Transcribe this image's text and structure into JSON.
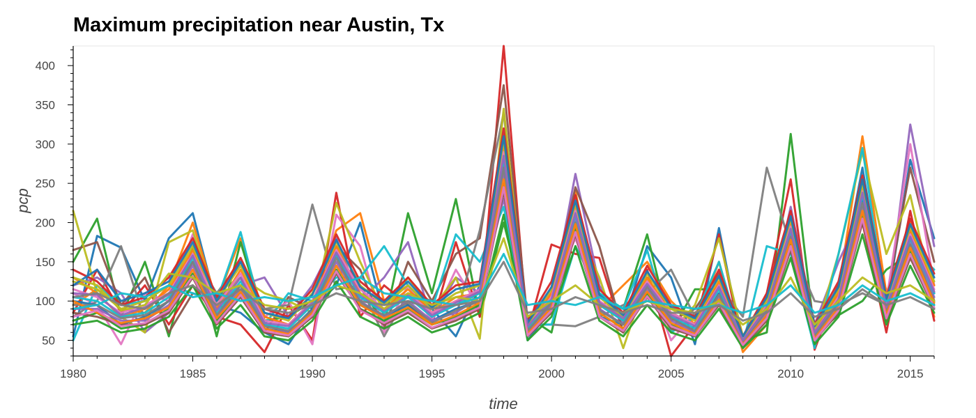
{
  "chart_data": {
    "type": "line",
    "title": "Maximum precipitation near Austin, Tx",
    "xlabel": "time",
    "ylabel": "pcp",
    "xlim": [
      1980,
      2016
    ],
    "ylim": [
      30,
      425
    ],
    "x_ticks": [
      "1980",
      "1985",
      "1990",
      "1995",
      "2000",
      "2005",
      "2010",
      "2015"
    ],
    "y_ticks": [
      "50",
      "100",
      "150",
      "200",
      "250",
      "300",
      "350",
      "400"
    ],
    "grid": false,
    "legend": "none",
    "x": [
      1980,
      1981,
      1982,
      1983,
      1984,
      1985,
      1986,
      1987,
      1988,
      1989,
      1990,
      1991,
      1992,
      1993,
      1994,
      1995,
      1996,
      1997,
      1998,
      1999,
      2000,
      2001,
      2002,
      2003,
      2004,
      2005,
      2006,
      2007,
      2008,
      2009,
      2010,
      2011,
      2012,
      2013,
      2014,
      2015,
      2016
    ],
    "series": [
      {
        "color": "#1f77b4",
        "values": [
          55,
          183,
          168,
          100,
          180,
          212,
          95,
          85,
          60,
          45,
          90,
          120,
          200,
          80,
          100,
          90,
          55,
          120,
          240,
          50,
          90,
          200,
          80,
          70,
          170,
          130,
          45,
          193,
          40,
          100,
          205,
          60,
          110,
          270,
          90,
          280,
          180
        ]
      },
      {
        "color": "#ff7f0e",
        "values": [
          95,
          115,
          90,
          85,
          120,
          200,
          100,
          180,
          80,
          70,
          95,
          190,
          212,
          100,
          120,
          85,
          100,
          110,
          310,
          60,
          95,
          240,
          90,
          120,
          150,
          100,
          70,
          150,
          35,
          70,
          190,
          45,
          115,
          310,
          110,
          200,
          80
        ]
      },
      {
        "color": "#2ca02c",
        "values": [
          150,
          205,
          80,
          150,
          55,
          170,
          55,
          175,
          75,
          80,
          100,
          160,
          120,
          70,
          212,
          110,
          230,
          80,
          200,
          80,
          60,
          190,
          110,
          90,
          185,
          60,
          115,
          115,
          50,
          60,
          313,
          58,
          82,
          100,
          140,
          160,
          100
        ]
      },
      {
        "color": "#d62728",
        "values": [
          85,
          140,
          85,
          120,
          70,
          120,
          80,
          70,
          35,
          95,
          50,
          238,
          80,
          120,
          95,
          70,
          175,
          80,
          425,
          60,
          172,
          160,
          155,
          60,
          140,
          30,
          70,
          185,
          40,
          110,
          255,
          38,
          120,
          200,
          60,
          215,
          75
        ]
      },
      {
        "color": "#9467bd",
        "values": [
          120,
          130,
          110,
          60,
          85,
          150,
          90,
          120,
          130,
          80,
          120,
          180,
          100,
          130,
          175,
          75,
          130,
          110,
          230,
          80,
          100,
          262,
          120,
          70,
          120,
          95,
          80,
          100,
          45,
          80,
          220,
          70,
          150,
          215,
          80,
          325,
          170
        ]
      },
      {
        "color": "#8c564b",
        "values": [
          165,
          175,
          95,
          130,
          60,
          110,
          100,
          130,
          60,
          105,
          90,
          170,
          140,
          65,
          150,
          100,
          160,
          180,
          375,
          75,
          110,
          245,
          170,
          60,
          130,
          75,
          90,
          135,
          45,
          80,
          200,
          60,
          120,
          230,
          100,
          270,
          150
        ]
      },
      {
        "color": "#e377c2",
        "values": [
          110,
          95,
          45,
          110,
          100,
          185,
          75,
          110,
          80,
          100,
          45,
          210,
          170,
          60,
          120,
          75,
          140,
          90,
          265,
          70,
          110,
          180,
          95,
          75,
          130,
          50,
          85,
          120,
          40,
          95,
          170,
          55,
          110,
          255,
          100,
          300,
          120
        ]
      },
      {
        "color": "#7f7f7f",
        "values": [
          80,
          100,
          170,
          75,
          100,
          160,
          110,
          150,
          90,
          95,
          223,
          115,
          120,
          55,
          110,
          100,
          80,
          190,
          340,
          70,
          70,
          68,
          80,
          95,
          110,
          140,
          80,
          120,
          80,
          270,
          170,
          100,
          95,
          110,
          95,
          190,
          110
        ]
      },
      {
        "color": "#bcbd22",
        "values": [
          215,
          110,
          80,
          60,
          175,
          190,
          95,
          130,
          110,
          100,
          85,
          225,
          150,
          85,
          130,
          90,
          130,
          52,
          345,
          60,
          90,
          200,
          130,
          40,
          130,
          60,
          95,
          180,
          55,
          105,
          200,
          55,
          160,
          290,
          160,
          235,
          100
        ]
      },
      {
        "color": "#17becf",
        "values": [
          50,
          120,
          95,
          100,
          120,
          110,
          100,
          188,
          70,
          110,
          100,
          130,
          130,
          170,
          120,
          90,
          185,
          150,
          220,
          70,
          70,
          170,
          110,
          90,
          165,
          60,
          80,
          150,
          45,
          170,
          160,
          40,
          160,
          295,
          90,
          170,
          140
        ]
      },
      {
        "color": "#1f77b4",
        "values": [
          100,
          95,
          70,
          80,
          100,
          150,
          80,
          120,
          65,
          60,
          90,
          160,
          95,
          80,
          95,
          75,
          90,
          100,
          280,
          60,
          100,
          210,
          90,
          70,
          120,
          80,
          60,
          110,
          45,
          90,
          190,
          55,
          100,
          230,
          85,
          180,
          110
        ]
      },
      {
        "color": "#ff7f0e",
        "values": [
          130,
          110,
          80,
          90,
          115,
          165,
          90,
          140,
          80,
          70,
          100,
          170,
          110,
          90,
          115,
          85,
          105,
          110,
          300,
          65,
          110,
          220,
          100,
          75,
          130,
          85,
          70,
          125,
          50,
          100,
          200,
          60,
          110,
          245,
          95,
          190,
          120
        ]
      },
      {
        "color": "#2ca02c",
        "values": [
          75,
          85,
          65,
          70,
          90,
          135,
          75,
          110,
          60,
          55,
          80,
          140,
          90,
          75,
          90,
          70,
          80,
          95,
          250,
          55,
          90,
          195,
          85,
          65,
          110,
          70,
          55,
          100,
          45,
          80,
          175,
          50,
          90,
          210,
          80,
          165,
          95
        ]
      },
      {
        "color": "#d62728",
        "values": [
          140,
          125,
          95,
          105,
          130,
          180,
          105,
          155,
          90,
          80,
          115,
          185,
          125,
          100,
          130,
          95,
          120,
          125,
          320,
          75,
          125,
          235,
          115,
          85,
          145,
          95,
          80,
          140,
          55,
          110,
          215,
          70,
          125,
          260,
          105,
          205,
          135
        ]
      },
      {
        "color": "#9467bd",
        "values": [
          90,
          90,
          75,
          75,
          95,
          145,
          80,
          115,
          70,
          60,
          85,
          150,
          100,
          80,
          100,
          75,
          85,
          105,
          265,
          60,
          95,
          205,
          90,
          70,
          115,
          75,
          60,
          105,
          45,
          85,
          185,
          55,
          95,
          220,
          85,
          175,
          105
        ]
      },
      {
        "color": "#e377c2",
        "values": [
          115,
          105,
          85,
          95,
          110,
          160,
          95,
          135,
          75,
          70,
          100,
          165,
          115,
          90,
          110,
          85,
          100,
          115,
          290,
          70,
          105,
          215,
          100,
          80,
          125,
          85,
          70,
          120,
          50,
          95,
          195,
          60,
          105,
          240,
          95,
          185,
          115
        ]
      },
      {
        "color": "#bcbd22",
        "values": [
          125,
          115,
          90,
          100,
          120,
          170,
          100,
          145,
          85,
          75,
          110,
          175,
          120,
          95,
          120,
          90,
          110,
          120,
          305,
          70,
          115,
          225,
          105,
          80,
          135,
          90,
          75,
          130,
          55,
          100,
          205,
          65,
          115,
          250,
          100,
          195,
          125
        ]
      },
      {
        "color": "#17becf",
        "values": [
          105,
          100,
          80,
          85,
          105,
          155,
          85,
          125,
          70,
          65,
          95,
          160,
          105,
          85,
          105,
          80,
          95,
          110,
          275,
          65,
          100,
          210,
          95,
          75,
          120,
          80,
          65,
          115,
          50,
          90,
          190,
          58,
          100,
          235,
          90,
          180,
          110
        ]
      },
      {
        "color": "#8c564b",
        "values": [
          85,
          80,
          70,
          70,
          85,
          130,
          70,
          105,
          60,
          55,
          80,
          135,
          90,
          70,
          85,
          65,
          75,
          90,
          240,
          55,
          85,
          185,
          80,
          60,
          105,
          65,
          55,
          95,
          42,
          75,
          165,
          50,
          85,
          200,
          75,
          155,
          90
        ]
      },
      {
        "color": "#7f7f7f",
        "values": [
          95,
          95,
          78,
          82,
          100,
          150,
          82,
          120,
          68,
          62,
          88,
          155,
          98,
          82,
          98,
          72,
          88,
          100,
          270,
          62,
          98,
          200,
          88,
          70,
          118,
          78,
          62,
          108,
          48,
          88,
          182,
          55,
          98,
          225,
          88,
          172,
          100
        ]
      },
      {
        "color": "#2ca02c",
        "values": [
          70,
          75,
          60,
          65,
          80,
          120,
          65,
          95,
          55,
          50,
          75,
          125,
          80,
          65,
          80,
          60,
          70,
          85,
          210,
          50,
          80,
          170,
          75,
          55,
          95,
          60,
          50,
          90,
          40,
          70,
          155,
          45,
          80,
          185,
          70,
          145,
          85
        ]
      },
      {
        "color": "#1f77b4",
        "values": [
          120,
          140,
          100,
          110,
          125,
          175,
          100,
          150,
          85,
          78,
          108,
          178,
          118,
          98,
          125,
          92,
          115,
          122,
          310,
          72,
          118,
          228,
          108,
          82,
          138,
          92,
          78,
          132,
          55,
          105,
          208,
          68,
          118,
          255,
          102,
          198,
          130
        ]
      },
      {
        "color": "#ff7f0e",
        "values": [
          100,
          85,
          72,
          78,
          92,
          140,
          78,
          112,
          65,
          58,
          85,
          145,
          95,
          78,
          92,
          70,
          82,
          98,
          255,
          58,
          92,
          198,
          85,
          65,
          112,
          72,
          58,
          102,
          45,
          82,
          178,
          52,
          92,
          215,
          82,
          168,
          98
        ]
      },
      {
        "color": "#9467bd",
        "values": [
          110,
          108,
          82,
          92,
          108,
          158,
          88,
          130,
          72,
          68,
          98,
          162,
          108,
          88,
          108,
          82,
          98,
          112,
          285,
          68,
          102,
          212,
          98,
          78,
          122,
          82,
          68,
          118,
          50,
          92,
          192,
          60,
          102,
          238,
          92,
          182,
          112
        ]
      },
      {
        "color": "#e377c2",
        "values": [
          80,
          88,
          68,
          72,
          88,
          132,
          72,
          108,
          62,
          56,
          82,
          138,
          88,
          72,
          88,
          66,
          78,
          92,
          245,
          56,
          88,
          188,
          80,
          62,
          106,
          68,
          56,
          98,
          44,
          78,
          170,
          50,
          88,
          205,
          78,
          160,
          92
        ]
      },
      {
        "color": "#bcbd22",
        "values": [
          130,
          120,
          88,
          95,
          135,
          130,
          110,
          120,
          95,
          90,
          100,
          120,
          110,
          90,
          110,
          95,
          105,
          100,
          180,
          80,
          100,
          120,
          95,
          85,
          100,
          90,
          85,
          100,
          70,
          90,
          130,
          70,
          100,
          130,
          110,
          120,
          100
        ]
      },
      {
        "color": "#17becf",
        "values": [
          90,
          95,
          110,
          105,
          120,
          105,
          110,
          100,
          105,
          100,
          105,
          120,
          130,
          110,
          105,
          100,
          95,
          105,
          160,
          95,
          100,
          95,
          105,
          90,
          100,
          95,
          90,
          95,
          85,
          95,
          120,
          85,
          95,
          120,
          100,
          110,
          95
        ]
      },
      {
        "color": "#7f7f7f",
        "values": [
          105,
          110,
          95,
          90,
          110,
          120,
          95,
          115,
          90,
          85,
          95,
          110,
          100,
          95,
          100,
          90,
          95,
          100,
          150,
          85,
          90,
          105,
          95,
          85,
          95,
          85,
          85,
          95,
          75,
          85,
          110,
          80,
          90,
          115,
          95,
          105,
          90
        ]
      }
    ]
  }
}
